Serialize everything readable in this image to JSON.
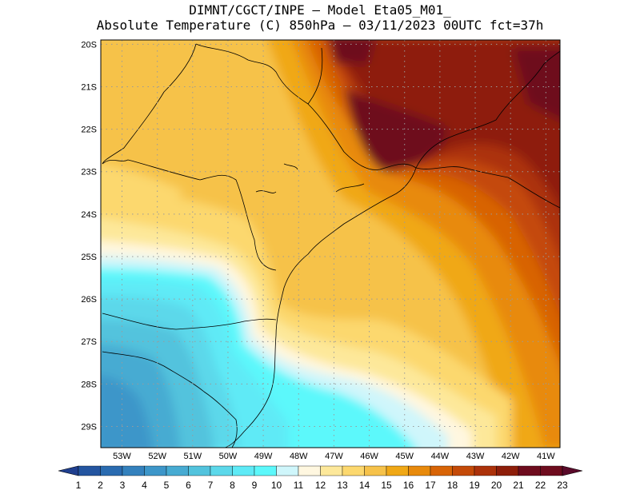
{
  "title": {
    "line1": "DIMNT/CGCT/INPE –  Model Eta05_M01_",
    "line2": "Absolute Temperature (C) 850hPa –  03/11/2023 00UTC fct=37h"
  },
  "map": {
    "lat_labels": [
      "20S",
      "21S",
      "22S",
      "23S",
      "24S",
      "25S",
      "26S",
      "27S",
      "28S",
      "29S"
    ],
    "lon_labels": [
      "53W",
      "52W",
      "51W",
      "50W",
      "49W",
      "48W",
      "47W",
      "46W",
      "45W",
      "44W",
      "43W",
      "42W",
      "41W"
    ],
    "lat_range": [
      -29.5,
      -19.9
    ],
    "lon_range": [
      -53.6,
      -40.6
    ],
    "grid": true
  },
  "colorbar": {
    "labels": [
      "1",
      "2",
      "3",
      "4",
      "5",
      "6",
      "7",
      "8",
      "9",
      "10",
      "11",
      "12",
      "13",
      "14",
      "15",
      "16",
      "17",
      "18",
      "19",
      "20",
      "21",
      "22",
      "23"
    ],
    "colors": [
      "#1f3f8f",
      "#2455a0",
      "#2a6bb0",
      "#3481bd",
      "#3d96c9",
      "#47abd2",
      "#52c3dd",
      "#5cd8ea",
      "#5eeaf6",
      "#5cf8fb",
      "#cff6fb",
      "#fff7e0",
      "#fde89a",
      "#fcd86e",
      "#f6c24a",
      "#f0a816",
      "#e88a0c",
      "#d86406",
      "#c44a08",
      "#ac320a",
      "#8e1e0a",
      "#6e0c1e",
      "#5a0a2a"
    ]
  }
}
